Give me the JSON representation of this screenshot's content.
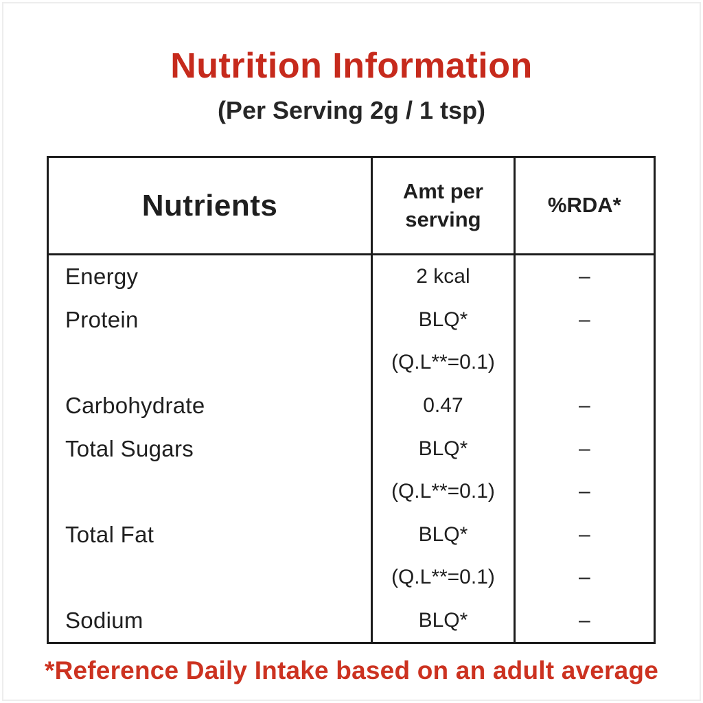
{
  "title": "Nutrition Information",
  "subtitle": "(Per Serving 2g / 1 tsp)",
  "footnote": "*Reference Daily Intake based on an adult average",
  "colors": {
    "title_red": "#c62a1c",
    "footnote_red": "#cc3220",
    "text_dark": "#1f1f1f",
    "table_border": "#1c1c1c"
  },
  "table": {
    "columns": [
      "Nutrients",
      "Amt per serving",
      "%RDA*"
    ],
    "rows": [
      {
        "nutrient": "Energy",
        "amount": "2 kcal",
        "rda": "–"
      },
      {
        "nutrient": "Protein",
        "amount": "BLQ*",
        "rda": "–"
      },
      {
        "nutrient": "",
        "amount": "(Q.L**=0.1)",
        "rda": ""
      },
      {
        "nutrient": "Carbohydrate",
        "amount": "0.47",
        "rda": "–"
      },
      {
        "nutrient": "Total Sugars",
        "amount": "BLQ*",
        "rda": "–"
      },
      {
        "nutrient": "",
        "amount": "(Q.L**=0.1)",
        "rda": "–"
      },
      {
        "nutrient": "Total Fat",
        "amount": "BLQ*",
        "rda": "–"
      },
      {
        "nutrient": "",
        "amount": "(Q.L**=0.1)",
        "rda": "–"
      },
      {
        "nutrient": "Sodium",
        "amount": "BLQ*",
        "rda": "–"
      }
    ]
  }
}
